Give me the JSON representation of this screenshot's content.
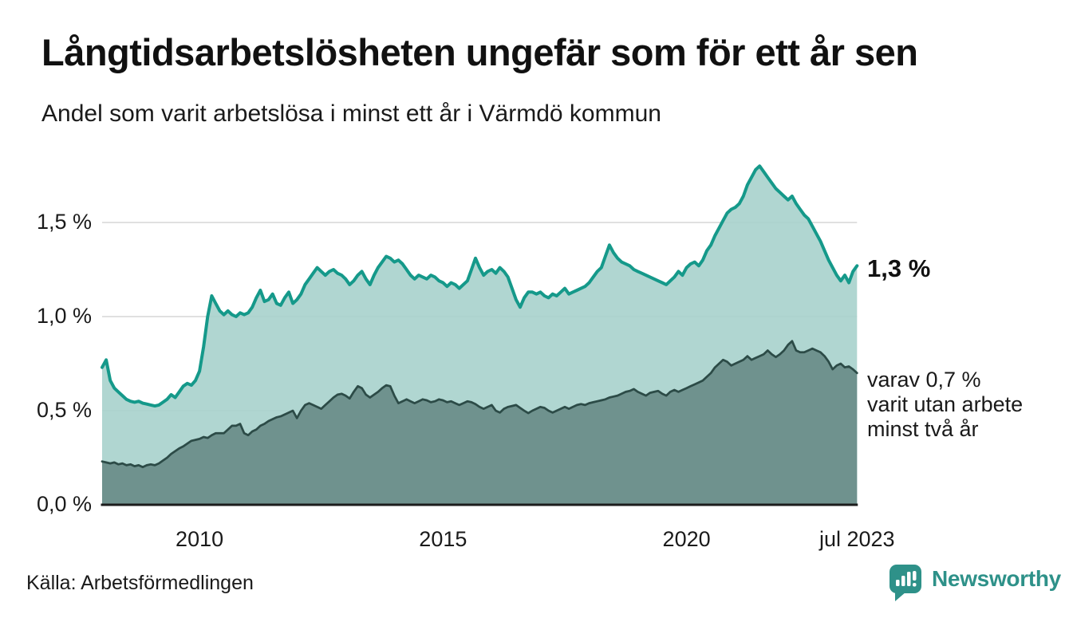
{
  "title": "Långtidsarbetslösheten ungefär som för ett år sen",
  "subtitle": "Andel som varit arbetslösa i minst ett år i Värmdö kommun",
  "source": "Källa: Arbetsförmedlingen",
  "branding": {
    "name": "Newsworthy",
    "icon": "newsworthy-chart-bubble-icon",
    "color": "#2e9189"
  },
  "annotations": {
    "end_label_primary": "1,3 %",
    "end_label_secondary": "varav 0,7 %\nvarit utan arbete\nminst två år"
  },
  "colors": {
    "line_primary": "#15998a",
    "area_light": "#a7d2cc",
    "line_secondary": "#2c4b47",
    "area_dark": "#6f928e",
    "gridline": "#d6d6d6",
    "axis": "#1c1c1c",
    "text": "#1a1a1a"
  },
  "chart_data": {
    "type": "area",
    "title": "Långtidsarbetslösheten ungefär som för ett år sen",
    "subtitle": "Andel som varit arbetslösa i minst ett år i Värmdö kommun",
    "unit": "%",
    "x_start": 2008.0,
    "x_step": 0.0833333,
    "x_end": 2023.5,
    "ylim": [
      0,
      1.9
    ],
    "grid": "horizontal",
    "legend": "none",
    "y_gridlines": [
      0.5,
      1.0,
      1.5
    ],
    "y_ticks": [
      {
        "value": 0.0,
        "label": "0,0 %"
      },
      {
        "value": 0.5,
        "label": "0,5 %"
      },
      {
        "value": 1.0,
        "label": "1,0 %"
      },
      {
        "value": 1.5,
        "label": "1,5 %"
      }
    ],
    "x_ticks": [
      {
        "t": 2010,
        "label": "2010"
      },
      {
        "t": 2015,
        "label": "2015"
      },
      {
        "t": 2020,
        "label": "2020"
      },
      {
        "t": 2023.5,
        "label": "jul 2023"
      }
    ],
    "series": [
      {
        "name": "Arbetslösa minst ett år",
        "end_value_label": "1,3 %",
        "values": [
          0.73,
          0.77,
          0.66,
          0.62,
          0.6,
          0.58,
          0.56,
          0.55,
          0.545,
          0.55,
          0.54,
          0.535,
          0.53,
          0.525,
          0.53,
          0.545,
          0.56,
          0.585,
          0.57,
          0.6,
          0.63,
          0.645,
          0.635,
          0.66,
          0.71,
          0.84,
          1.0,
          1.11,
          1.07,
          1.03,
          1.01,
          1.03,
          1.01,
          1.0,
          1.02,
          1.01,
          1.02,
          1.05,
          1.1,
          1.14,
          1.08,
          1.09,
          1.12,
          1.07,
          1.06,
          1.1,
          1.13,
          1.07,
          1.09,
          1.12,
          1.17,
          1.2,
          1.23,
          1.26,
          1.24,
          1.22,
          1.24,
          1.25,
          1.23,
          1.22,
          1.2,
          1.17,
          1.19,
          1.22,
          1.24,
          1.2,
          1.17,
          1.22,
          1.26,
          1.29,
          1.32,
          1.31,
          1.29,
          1.3,
          1.28,
          1.25,
          1.22,
          1.2,
          1.22,
          1.21,
          1.2,
          1.22,
          1.21,
          1.19,
          1.18,
          1.16,
          1.18,
          1.17,
          1.15,
          1.17,
          1.19,
          1.25,
          1.31,
          1.26,
          1.22,
          1.24,
          1.25,
          1.23,
          1.26,
          1.24,
          1.21,
          1.15,
          1.09,
          1.05,
          1.1,
          1.13,
          1.13,
          1.12,
          1.13,
          1.11,
          1.1,
          1.12,
          1.11,
          1.13,
          1.15,
          1.12,
          1.13,
          1.14,
          1.15,
          1.16,
          1.18,
          1.21,
          1.24,
          1.26,
          1.32,
          1.38,
          1.34,
          1.31,
          1.29,
          1.28,
          1.27,
          1.25,
          1.24,
          1.23,
          1.22,
          1.21,
          1.2,
          1.19,
          1.18,
          1.17,
          1.19,
          1.21,
          1.24,
          1.22,
          1.26,
          1.28,
          1.29,
          1.27,
          1.3,
          1.35,
          1.38,
          1.43,
          1.47,
          1.51,
          1.55,
          1.57,
          1.58,
          1.6,
          1.64,
          1.7,
          1.74,
          1.78,
          1.8,
          1.77,
          1.74,
          1.71,
          1.68,
          1.66,
          1.64,
          1.62,
          1.64,
          1.6,
          1.57,
          1.54,
          1.52,
          1.48,
          1.44,
          1.4,
          1.35,
          1.3,
          1.26,
          1.22,
          1.19,
          1.22,
          1.18,
          1.24,
          1.27
        ]
      },
      {
        "name": "varav utan arbete minst två år",
        "end_value_label": "varav 0,7 % varit utan arbete minst två år",
        "values": [
          0.23,
          0.225,
          0.22,
          0.225,
          0.215,
          0.22,
          0.21,
          0.215,
          0.205,
          0.21,
          0.2,
          0.21,
          0.215,
          0.21,
          0.22,
          0.235,
          0.25,
          0.27,
          0.285,
          0.3,
          0.31,
          0.325,
          0.34,
          0.345,
          0.35,
          0.36,
          0.355,
          0.37,
          0.38,
          0.38,
          0.38,
          0.4,
          0.42,
          0.42,
          0.43,
          0.38,
          0.37,
          0.39,
          0.4,
          0.42,
          0.43,
          0.445,
          0.455,
          0.465,
          0.47,
          0.48,
          0.49,
          0.5,
          0.46,
          0.5,
          0.53,
          0.54,
          0.53,
          0.52,
          0.51,
          0.53,
          0.55,
          0.57,
          0.585,
          0.59,
          0.58,
          0.565,
          0.6,
          0.63,
          0.62,
          0.585,
          0.57,
          0.585,
          0.6,
          0.62,
          0.635,
          0.63,
          0.58,
          0.54,
          0.55,
          0.56,
          0.55,
          0.54,
          0.55,
          0.56,
          0.555,
          0.545,
          0.55,
          0.56,
          0.555,
          0.545,
          0.55,
          0.54,
          0.53,
          0.54,
          0.55,
          0.545,
          0.535,
          0.52,
          0.51,
          0.52,
          0.53,
          0.5,
          0.49,
          0.51,
          0.52,
          0.525,
          0.53,
          0.515,
          0.5,
          0.487,
          0.5,
          0.51,
          0.52,
          0.515,
          0.5,
          0.49,
          0.5,
          0.51,
          0.52,
          0.51,
          0.52,
          0.53,
          0.535,
          0.53,
          0.54,
          0.545,
          0.55,
          0.555,
          0.56,
          0.57,
          0.575,
          0.58,
          0.59,
          0.6,
          0.605,
          0.615,
          0.6,
          0.59,
          0.58,
          0.595,
          0.6,
          0.605,
          0.59,
          0.58,
          0.6,
          0.61,
          0.6,
          0.61,
          0.62,
          0.63,
          0.64,
          0.65,
          0.66,
          0.68,
          0.7,
          0.73,
          0.75,
          0.77,
          0.76,
          0.74,
          0.75,
          0.76,
          0.77,
          0.79,
          0.77,
          0.78,
          0.79,
          0.8,
          0.82,
          0.8,
          0.785,
          0.8,
          0.82,
          0.85,
          0.87,
          0.82,
          0.81,
          0.81,
          0.82,
          0.83,
          0.82,
          0.81,
          0.79,
          0.76,
          0.72,
          0.74,
          0.75,
          0.73,
          0.735,
          0.72,
          0.7
        ]
      }
    ]
  }
}
